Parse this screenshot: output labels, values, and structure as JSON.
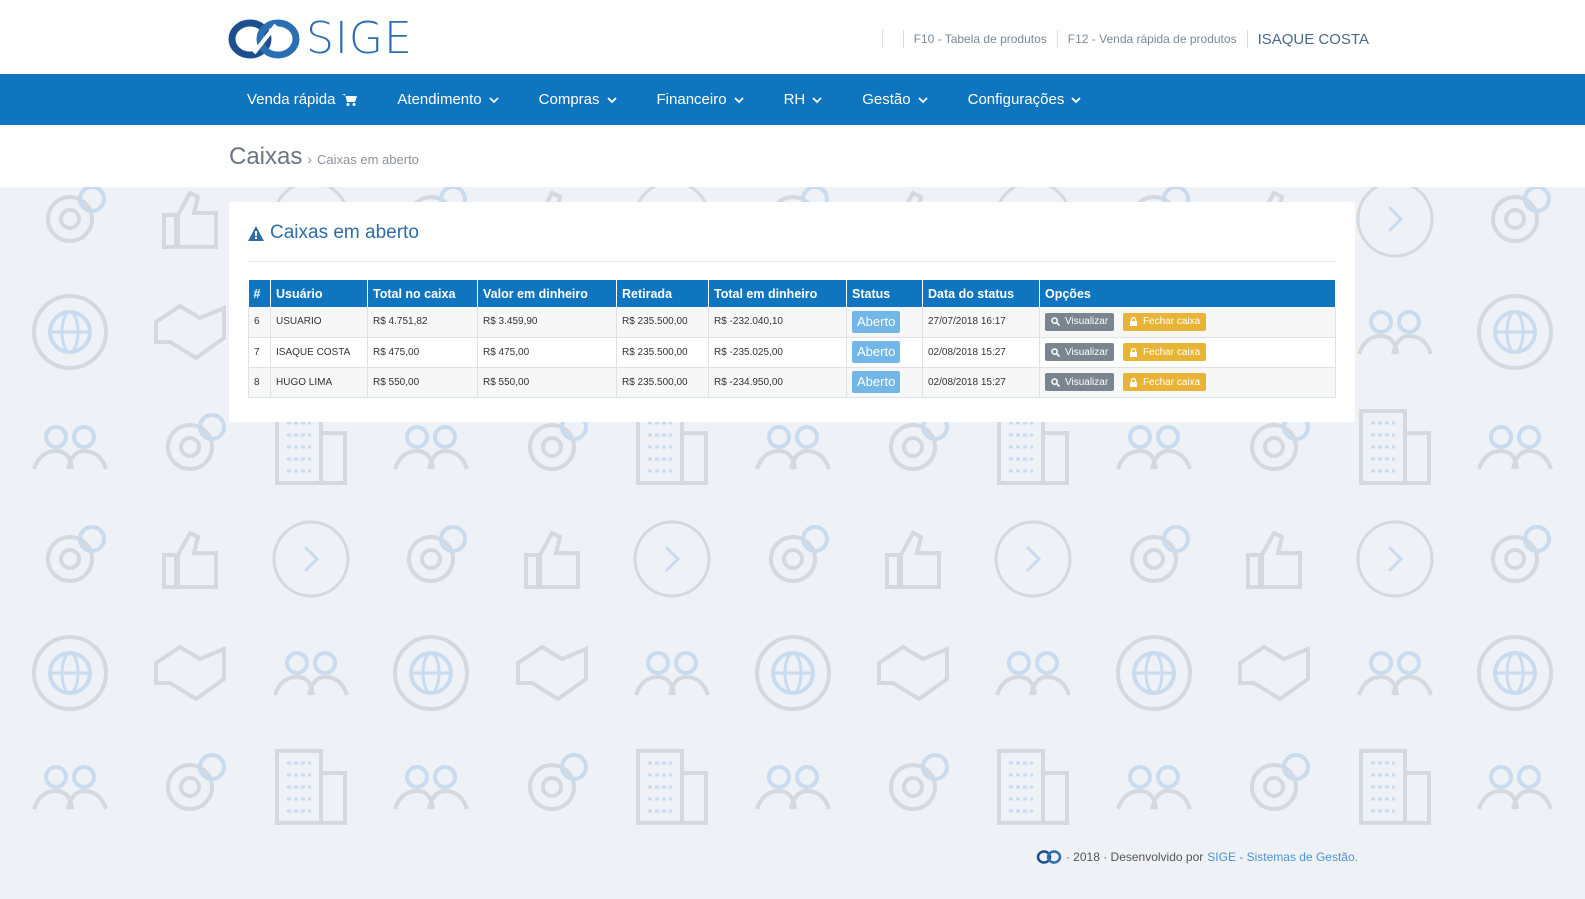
{
  "header": {
    "logo_text": "SIGE",
    "links": [
      "F10 - Tabela de produtos",
      "F12 - Venda rápida de produtos"
    ],
    "user_name": "ISAQUE COSTA"
  },
  "nav": {
    "items": [
      {
        "label": "Venda rápida",
        "icon": "cart-icon"
      },
      {
        "label": "Atendimento",
        "icon": "chevron-down-icon"
      },
      {
        "label": "Compras",
        "icon": "chevron-down-icon"
      },
      {
        "label": "Financeiro",
        "icon": "chevron-down-icon"
      },
      {
        "label": "RH",
        "icon": "chevron-down-icon"
      },
      {
        "label": "Gestão",
        "icon": "chevron-down-icon"
      },
      {
        "label": "Configurações",
        "icon": "chevron-down-icon"
      }
    ]
  },
  "breadcrumb": {
    "title": "Caixas",
    "separator": "›",
    "current": "Caixas em aberto"
  },
  "panel": {
    "title": "Caixas em aberto",
    "title_icon": "warning-icon"
  },
  "table": {
    "columns": [
      "#",
      "Usuário",
      "Total no caixa",
      "Valor em dinheiro",
      "Retirada",
      "Total em dinheiro",
      "Status",
      "Data do status",
      "Opções"
    ],
    "rows": [
      {
        "id": "6",
        "usuario": "USUARIO",
        "total_caixa": "R$ 4.751,82",
        "valor_dinheiro": "R$ 3.459,90",
        "retirada": "R$ 235.500,00",
        "total_dinheiro": "R$ -232.040,10",
        "status": "Aberto",
        "data_status": "27/07/2018 16:17"
      },
      {
        "id": "7",
        "usuario": "ISAQUE COSTA",
        "total_caixa": "R$ 475,00",
        "valor_dinheiro": "R$ 475,00",
        "retirada": "R$ 235.500,00",
        "total_dinheiro": "R$ -235.025,00",
        "status": "Aberto",
        "data_status": "02/08/2018 15:27"
      },
      {
        "id": "8",
        "usuario": "HUGO LIMA",
        "total_caixa": "R$ 550,00",
        "valor_dinheiro": "R$ 550,00",
        "retirada": "R$ 235.500,00",
        "total_dinheiro": "R$ -234.950,00",
        "status": "Aberto",
        "data_status": "02/08/2018 15:27"
      }
    ],
    "actions": {
      "view_label": "Visualizar",
      "view_icon": "search-icon",
      "close_label": "Fechar caixa",
      "close_icon": "lock-icon"
    }
  },
  "footer": {
    "text": "· 2018 · Desenvolvido por",
    "link": "SIGE - Sistemas de Gestão."
  },
  "colors": {
    "primary": "#0f75be",
    "status_badge": "#72b7e8",
    "view_button": "#7a8590",
    "close_button": "#e9b435",
    "background": "#eef1f5"
  }
}
